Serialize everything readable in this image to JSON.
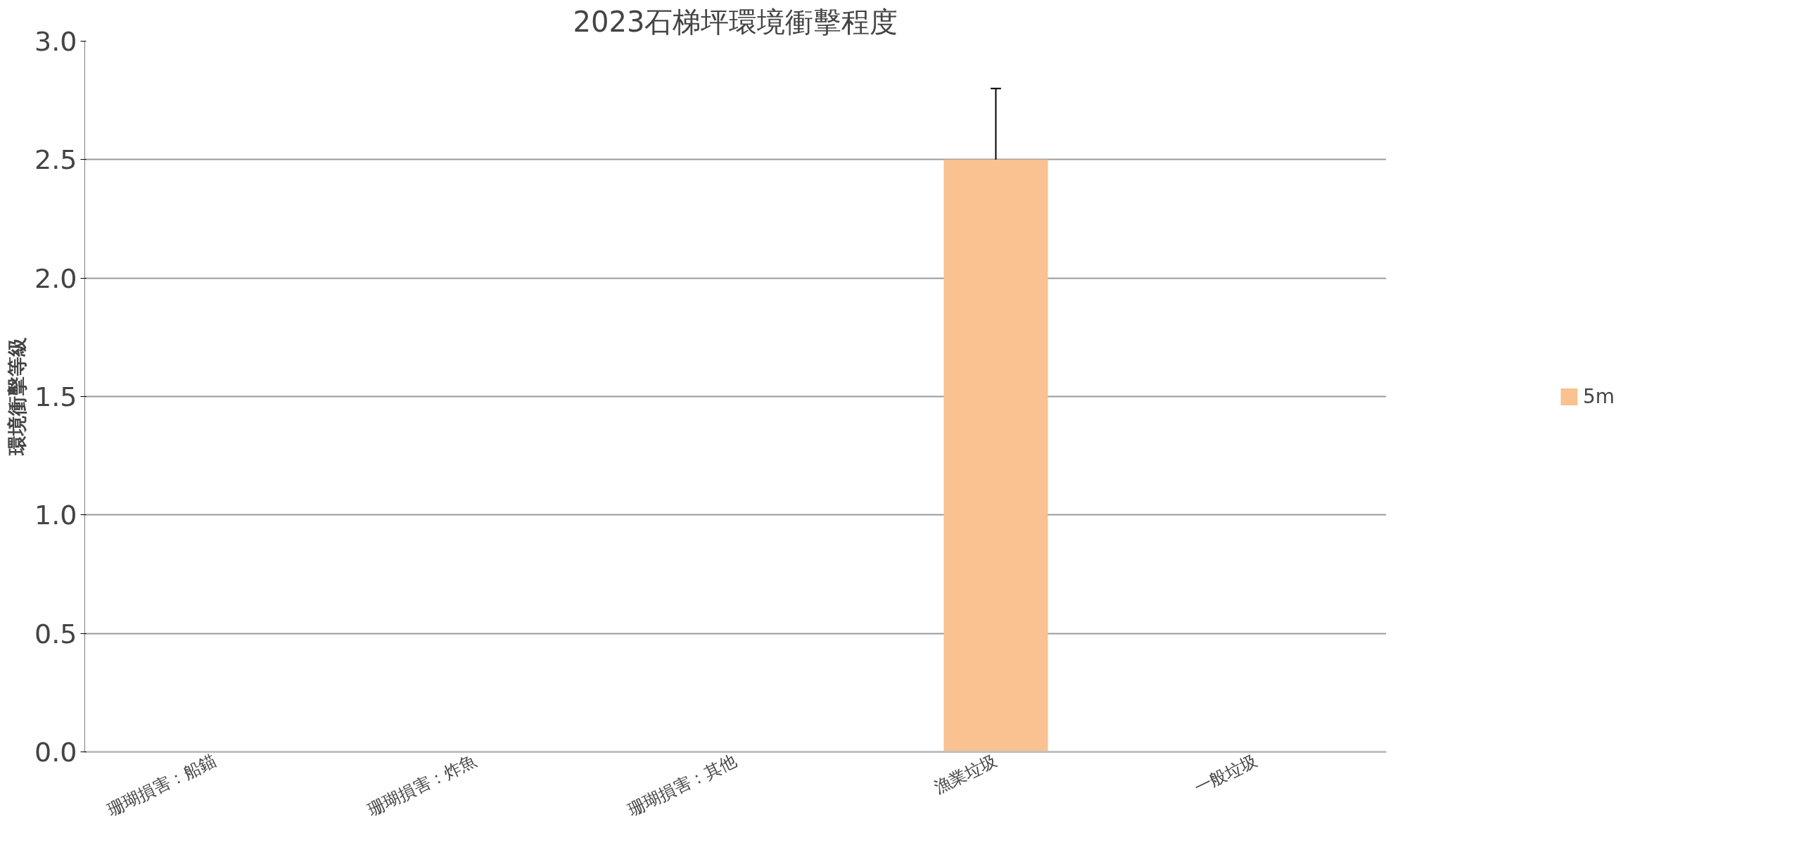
{
  "chart_data": {
    "type": "bar",
    "title": "2023石梯坪環境衝擊程度",
    "ylabel": "環境衝擊等級",
    "categories": [
      "珊瑚損害：船錨",
      "珊瑚損害：炸魚",
      "珊瑚損害：其他",
      "漁業垃圾",
      "一般垃圾"
    ],
    "series": [
      {
        "name": "5m",
        "color": "#f9c290",
        "values": [
          0,
          0,
          0,
          2.5,
          0
        ],
        "errors": [
          null,
          null,
          null,
          [
            2.5,
            2.8
          ],
          null
        ]
      }
    ],
    "ylim": [
      0,
      3
    ],
    "yticks": [
      {
        "value": 0,
        "label": "0.0"
      },
      {
        "value": 0.5,
        "label": "0.5"
      },
      {
        "value": 1,
        "label": "1.0"
      },
      {
        "value": 1.5,
        "label": "1.5"
      },
      {
        "value": 2,
        "label": "2.0"
      },
      {
        "value": 2.5,
        "label": "2.5"
      },
      {
        "value": 3,
        "label": "3.0"
      }
    ],
    "grid": "y",
    "legend": "right"
  }
}
